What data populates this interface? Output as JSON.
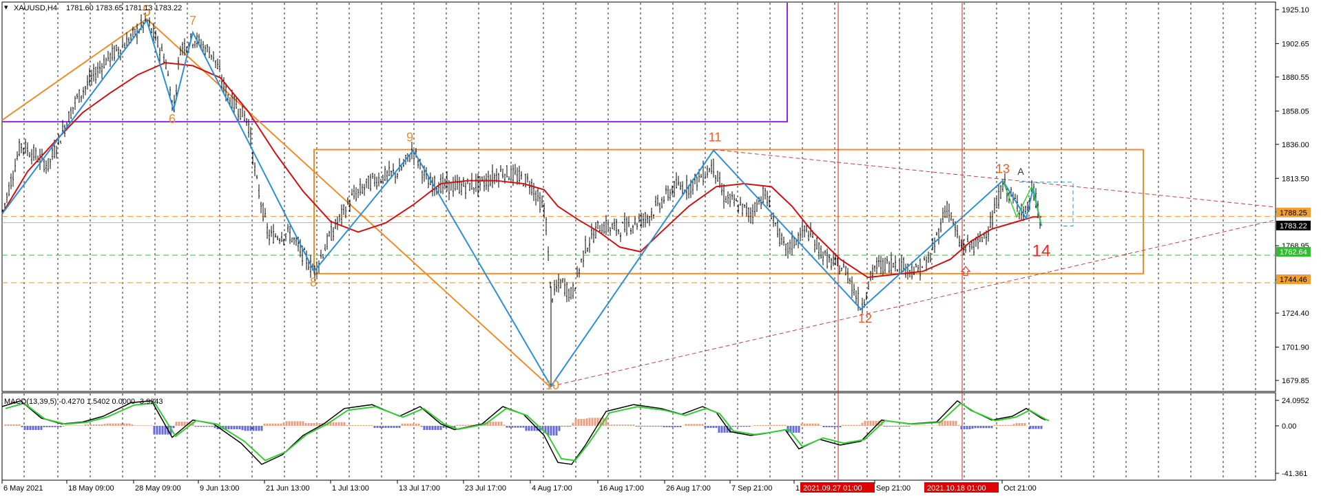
{
  "header": {
    "symbol_tf": "XAUUSD,H4",
    "ohlc": "1781.60 1783.65 1781.13 1783.22"
  },
  "macd": {
    "label": "MACD(13,39,5) -0.4270 1.5402 0.0000 -3.9343",
    "axis_labels": [
      "24.0952",
      "0.00",
      "-41.361"
    ]
  },
  "price_axis": {
    "labels": [
      "1925.10",
      "1902.65",
      "1880.55",
      "1858.05",
      "1836.00",
      "1813.50",
      "1791.45",
      "1768.95",
      "1746.45",
      "1724.40",
      "1701.90",
      "1679.85"
    ]
  },
  "price_tags": [
    {
      "text": "1788.25",
      "color": "#f0a030",
      "text_color": "#000000"
    },
    {
      "text": "1783.22",
      "color": "#000000",
      "text_color": "#ffffff"
    },
    {
      "text": "1762.64",
      "color": "#33bb33",
      "text_color": "#ffffff"
    },
    {
      "text": "1744.46",
      "color": "#f0a030",
      "text_color": "#000000"
    }
  ],
  "time_axis": {
    "labels": [
      "6 May 2021",
      "18 May 09:00",
      "28 May 09:00",
      "9 Jun 13:00",
      "21 Jun 13:00",
      "1 Jul 13:00",
      "13 Jul 17:00",
      "23 Jul 17:00",
      "4 Aug 17:00",
      "16 Aug 17:00",
      "26 Aug 17:00",
      "7 Sep 21:00",
      "1",
      "Sep 21:00",
      "Oct 21:00"
    ],
    "highlight_labels": [
      "2021.09.27 01:00",
      "2021.10.18 01:00"
    ]
  },
  "wave_labels": [
    {
      "text": "5",
      "color": "#f08c28"
    },
    {
      "text": "6",
      "color": "#f08c28"
    },
    {
      "text": "7",
      "color": "#f08c28"
    },
    {
      "text": "8",
      "color": "#f08c28"
    },
    {
      "text": "9",
      "color": "#f08c28"
    },
    {
      "text": "10",
      "color": "#f08c28"
    },
    {
      "text": "11",
      "color": "#f05a1e"
    },
    {
      "text": "12",
      "color": "#f05a1e"
    },
    {
      "text": "13",
      "color": "#f05a1e"
    },
    {
      "text": "A",
      "color": "#333333"
    },
    {
      "text": "14",
      "color": "#ff2020"
    }
  ],
  "colors": {
    "candles": "#000000",
    "ma": "#d01010",
    "zigzag": "#2a8fd8",
    "orange": "#f08c28",
    "purple": "#8a2be2",
    "macd_main": "#000000",
    "macd_signal": "#33cc33",
    "hist_pos": "#e8a080",
    "hist_neg": "#6a6ad8",
    "vline": "#d02020"
  },
  "chart_data": {
    "type": "line",
    "x": [
      "6 May",
      "18 May",
      "28 May",
      "9 Jun",
      "21 Jun",
      "1 Jul",
      "13 Jul",
      "23 Jul",
      "4 Aug",
      "16 Aug",
      "26 Aug",
      "7 Sep",
      "27 Sep",
      "18 Oct",
      "Oct 21"
    ],
    "series": [
      {
        "values": [
          1820,
          1855,
          1905,
          1892,
          1770,
          1790,
          1825,
          1808,
          1710,
          1795,
          1810,
          1815,
          1760,
          1790,
          1783
        ]
      }
    ],
    "ylim": [
      1670,
      1930
    ],
    "macd_ylim": [
      -45,
      27
    ]
  }
}
